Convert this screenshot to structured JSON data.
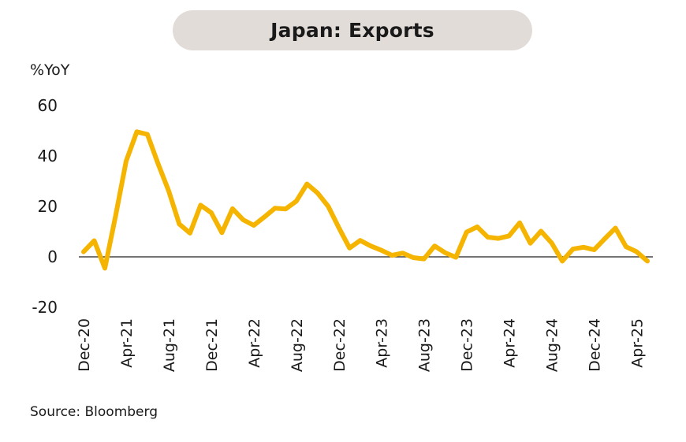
{
  "chart_data": {
    "type": "line",
    "title": "Japan: Exports",
    "ylabel": "%YoY",
    "ylim": [
      -20,
      60
    ],
    "yticks": [
      60,
      40,
      20,
      0,
      -20
    ],
    "x_tick_labels": [
      "Dec-20",
      "Apr-21",
      "Aug-21",
      "Dec-21",
      "Apr-22",
      "Aug-22",
      "Dec-22",
      "Apr-23",
      "Aug-23",
      "Dec-23",
      "Apr-24",
      "Aug-24",
      "Dec-24",
      "Apr-25"
    ],
    "x_tick_index": [
      0,
      4,
      8,
      12,
      16,
      20,
      24,
      28,
      32,
      36,
      40,
      44,
      48,
      52
    ],
    "x": [
      "Dec-20",
      "Jan-21",
      "Feb-21",
      "Mar-21",
      "Apr-21",
      "May-21",
      "Jun-21",
      "Jul-21",
      "Aug-21",
      "Sep-21",
      "Oct-21",
      "Nov-21",
      "Dec-21",
      "Jan-22",
      "Feb-22",
      "Mar-22",
      "Apr-22",
      "May-22",
      "Jun-22",
      "Jul-22",
      "Aug-22",
      "Sep-22",
      "Oct-22",
      "Nov-22",
      "Dec-22",
      "Jan-23",
      "Feb-23",
      "Mar-23",
      "Apr-23",
      "May-23",
      "Jun-23",
      "Jul-23",
      "Aug-23",
      "Sep-23",
      "Oct-23",
      "Nov-23",
      "Dec-23",
      "Jan-24",
      "Feb-24",
      "Mar-24",
      "Apr-24",
      "May-24",
      "Jun-24",
      "Jul-24",
      "Aug-24",
      "Sep-24",
      "Oct-24",
      "Nov-24",
      "Dec-24",
      "Jan-25",
      "Feb-25",
      "Mar-25",
      "Apr-25",
      "May-25"
    ],
    "series": [
      {
        "color": "#f5b400",
        "values": [
          2.0,
          6.4,
          -4.5,
          16.1,
          38.0,
          49.6,
          48.6,
          37.0,
          26.2,
          13.0,
          9.4,
          20.5,
          17.5,
          9.6,
          19.1,
          14.7,
          12.5,
          15.8,
          19.3,
          19.0,
          22.1,
          28.9,
          25.3,
          20.0,
          11.5,
          3.5,
          6.5,
          4.3,
          2.6,
          0.6,
          1.5,
          -0.3,
          -0.8,
          4.3,
          1.6,
          -0.2,
          9.8,
          11.9,
          7.8,
          7.3,
          8.3,
          13.5,
          5.4,
          10.2,
          5.5,
          -1.7,
          3.1,
          3.8,
          2.8,
          7.2,
          11.4,
          4.0,
          2.0,
          -1.7
        ]
      }
    ],
    "zero_line": true,
    "grid": false,
    "legend": "none",
    "source": "Source: Bloomberg"
  }
}
